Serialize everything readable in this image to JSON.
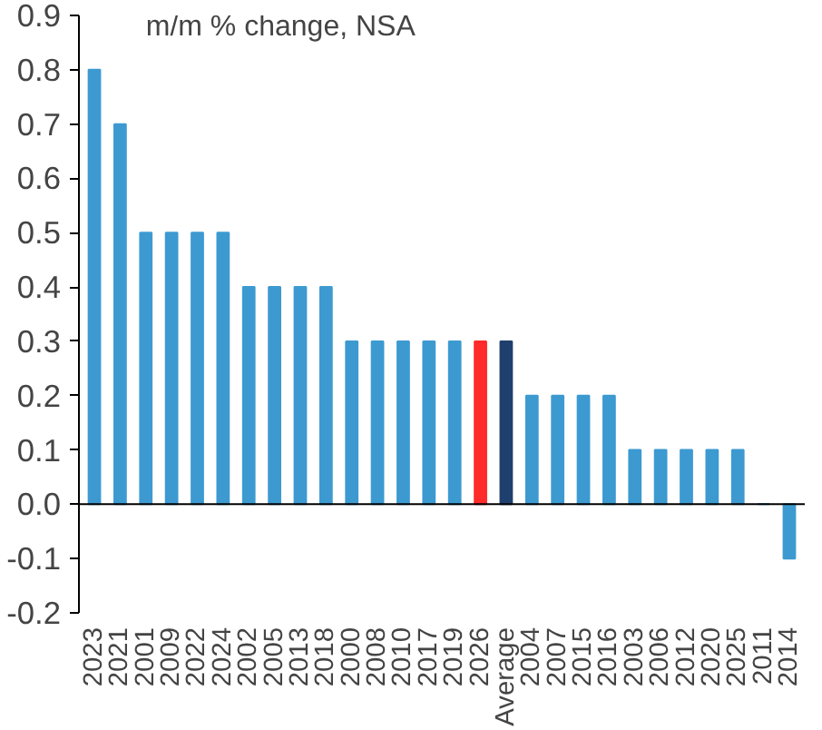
{
  "chart_data": {
    "type": "bar",
    "title": "m/m % change, NSA",
    "categories": [
      "2023",
      "2021",
      "2001",
      "2009",
      "2022",
      "2024",
      "2002",
      "2005",
      "2013",
      "2018",
      "2000",
      "2008",
      "2010",
      "2017",
      "2019",
      "2026",
      "Average",
      "2004",
      "2007",
      "2015",
      "2016",
      "2003",
      "2006",
      "2012",
      "2020",
      "2025",
      "2011",
      "2014"
    ],
    "values": [
      0.8,
      0.7,
      0.5,
      0.5,
      0.5,
      0.5,
      0.4,
      0.4,
      0.4,
      0.4,
      0.3,
      0.3,
      0.3,
      0.3,
      0.3,
      0.3,
      0.3,
      0.2,
      0.2,
      0.2,
      0.2,
      0.1,
      0.1,
      0.1,
      0.1,
      0.1,
      0.0,
      -0.1
    ],
    "colors": [
      "#3d9ad1",
      "#3d9ad1",
      "#3d9ad1",
      "#3d9ad1",
      "#3d9ad1",
      "#3d9ad1",
      "#3d9ad1",
      "#3d9ad1",
      "#3d9ad1",
      "#3d9ad1",
      "#3d9ad1",
      "#3d9ad1",
      "#3d9ad1",
      "#3d9ad1",
      "#3d9ad1",
      "#ff2a2a",
      "#1f3f6e",
      "#3d9ad1",
      "#3d9ad1",
      "#3d9ad1",
      "#3d9ad1",
      "#3d9ad1",
      "#3d9ad1",
      "#3d9ad1",
      "#3d9ad1",
      "#3d9ad1",
      "#3d9ad1",
      "#3d9ad1"
    ],
    "ylim": [
      -0.2,
      0.9
    ],
    "yticks": [
      {
        "value": -0.2,
        "label": "-0.2"
      },
      {
        "value": -0.1,
        "label": "-0.1"
      },
      {
        "value": 0,
        "label": "0.0"
      },
      {
        "value": 0.1,
        "label": "0.1"
      },
      {
        "value": 0.2,
        "label": "0.2"
      },
      {
        "value": 0.3,
        "label": "0.3"
      },
      {
        "value": 0.4,
        "label": "0.4"
      },
      {
        "value": 0.5,
        "label": "0.5"
      },
      {
        "value": 0.6,
        "label": "0.6"
      },
      {
        "value": 0.7,
        "label": "0.7"
      },
      {
        "value": 0.8,
        "label": "0.8"
      },
      {
        "value": 0.9,
        "label": "0.9"
      }
    ]
  }
}
